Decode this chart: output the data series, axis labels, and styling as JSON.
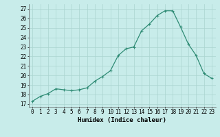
{
  "x": [
    0,
    1,
    2,
    3,
    4,
    5,
    6,
    7,
    8,
    9,
    10,
    11,
    12,
    13,
    14,
    15,
    16,
    17,
    18,
    19,
    20,
    21,
    22,
    23
  ],
  "y": [
    17.3,
    17.8,
    18.1,
    18.6,
    18.5,
    18.4,
    18.5,
    18.7,
    19.4,
    19.9,
    20.5,
    22.1,
    22.8,
    23.0,
    24.7,
    25.4,
    26.3,
    26.8,
    26.8,
    25.1,
    23.3,
    22.1,
    20.2,
    19.7
  ],
  "line_color": "#2e8b74",
  "marker": "+",
  "marker_size": 3,
  "marker_linewidth": 0.8,
  "line_width": 0.9,
  "bg_color": "#c8ecea",
  "grid_color": "#aad4d0",
  "xlabel": "Humidex (Indice chaleur)",
  "ylabel_ticks": [
    17,
    18,
    19,
    20,
    21,
    22,
    23,
    24,
    25,
    26,
    27
  ],
  "ylim": [
    16.7,
    27.5
  ],
  "xlim": [
    -0.5,
    23.5
  ],
  "tick_fontsize": 5.5,
  "label_fontsize": 6.5
}
